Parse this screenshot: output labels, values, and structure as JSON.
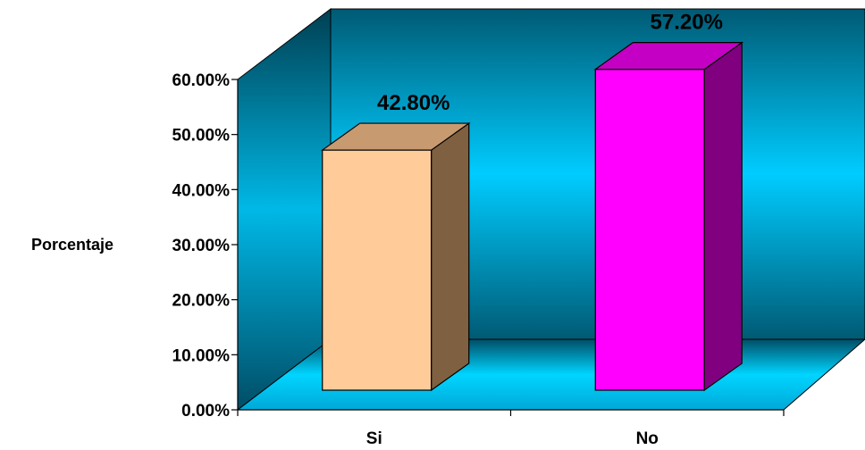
{
  "chart_data": {
    "type": "bar",
    "categories": [
      "Si",
      "No"
    ],
    "values": [
      42.8,
      57.2
    ],
    "value_labels": [
      "42.80%",
      "57.20%"
    ],
    "ylabel": "Porcentaje",
    "ylim": [
      0,
      60
    ],
    "yticks": [
      "0.00%",
      "10.00%",
      "20.00%",
      "30.00%",
      "40.00%",
      "50.00%",
      "60.00%"
    ],
    "grid": false,
    "legend": "none",
    "style": "3d-column",
    "colors": {
      "bars": [
        {
          "front": "#ffcc99",
          "top": "#c89a70",
          "side": "#7f6040"
        },
        {
          "front": "#ff00ff",
          "top": "#c400c4",
          "side": "#800080"
        }
      ],
      "wall_dark": "#005a74",
      "wall_light": "#00ccff",
      "floor_dark": "#004d66",
      "floor_light": "#00d5ff"
    }
  }
}
